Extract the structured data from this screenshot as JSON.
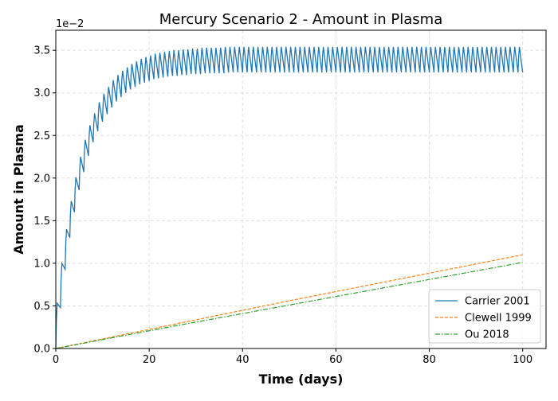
{
  "chart_data": {
    "type": "line",
    "title": "Mercury Scenario 2 - Amount in Plasma",
    "xlabel": "Time (days)",
    "ylabel": "Amount in Plasma",
    "y_offset_label": "1e−2",
    "xlim": [
      0,
      105
    ],
    "ylim": [
      0,
      3.735
    ],
    "xticks": [
      "0",
      "20",
      "40",
      "60",
      "80",
      "100"
    ],
    "yticks": [
      "0.0",
      "0.5",
      "1.0",
      "1.5",
      "2.0",
      "2.5",
      "3.0",
      "3.5"
    ],
    "grid": true,
    "legend_position": "lower-right",
    "series": [
      {
        "name": "Carrier 2001",
        "color": "#1f77b4",
        "style": "solid",
        "pattern": "daily dose oscillation",
        "daily_peaks": [
          0.53,
          1.0,
          1.4,
          1.73,
          2.01,
          2.25,
          2.45,
          2.62,
          2.76,
          2.89,
          2.99,
          3.07,
          3.15,
          3.21,
          3.26,
          3.3,
          3.34,
          3.37,
          3.4,
          3.42,
          3.44,
          3.46,
          3.47,
          3.48,
          3.49,
          3.5,
          3.5,
          3.51,
          3.51,
          3.52,
          3.52,
          3.53,
          3.53,
          3.53,
          3.53,
          3.53,
          3.54,
          3.54,
          3.54,
          3.54,
          3.54,
          3.54,
          3.54,
          3.54,
          3.54,
          3.54,
          3.54,
          3.54,
          3.54,
          3.54,
          3.54,
          3.54,
          3.54,
          3.54,
          3.54,
          3.54,
          3.54,
          3.54,
          3.54,
          3.54,
          3.54,
          3.54,
          3.54,
          3.54,
          3.54,
          3.54,
          3.54,
          3.54,
          3.54,
          3.54,
          3.54,
          3.54,
          3.54,
          3.54,
          3.54,
          3.54,
          3.54,
          3.54,
          3.54,
          3.54,
          3.54,
          3.54,
          3.54,
          3.54,
          3.54,
          3.54,
          3.54,
          3.54,
          3.54,
          3.54,
          3.54,
          3.54,
          3.54,
          3.54,
          3.54,
          3.54,
          3.54,
          3.54,
          3.54,
          3.54
        ],
        "daily_troughs": [
          0.48,
          0.93,
          1.3,
          1.6,
          1.86,
          2.07,
          2.26,
          2.42,
          2.55,
          2.66,
          2.75,
          2.83,
          2.9,
          2.95,
          3.0,
          3.04,
          3.07,
          3.1,
          3.12,
          3.14,
          3.16,
          3.17,
          3.18,
          3.19,
          3.2,
          3.2,
          3.21,
          3.21,
          3.22,
          3.22,
          3.22,
          3.23,
          3.23,
          3.23,
          3.23,
          3.23,
          3.24,
          3.24,
          3.24,
          3.24,
          3.24,
          3.24,
          3.24,
          3.24,
          3.24,
          3.24,
          3.24,
          3.24,
          3.24,
          3.24,
          3.24,
          3.24,
          3.24,
          3.24,
          3.24,
          3.24,
          3.24,
          3.24,
          3.24,
          3.24,
          3.24,
          3.24,
          3.24,
          3.24,
          3.24,
          3.24,
          3.24,
          3.24,
          3.24,
          3.24,
          3.24,
          3.24,
          3.24,
          3.24,
          3.24,
          3.24,
          3.24,
          3.24,
          3.24,
          3.24,
          3.24,
          3.24,
          3.24,
          3.24,
          3.24,
          3.24,
          3.24,
          3.24,
          3.24,
          3.24,
          3.24,
          3.24,
          3.24,
          3.24,
          3.24,
          3.24,
          3.24,
          3.24,
          3.24,
          3.24
        ]
      },
      {
        "name": "Clewell 1999",
        "color": "#ff7f0e",
        "style": "dashed",
        "x": [
          0,
          25,
          50,
          75,
          100
        ],
        "y": [
          0,
          0.28,
          0.56,
          0.83,
          1.1
        ]
      },
      {
        "name": "Ou 2018",
        "color": "#2ca02c",
        "style": "dashdot",
        "x": [
          0,
          25,
          50,
          75,
          100
        ],
        "y": [
          0,
          0.26,
          0.51,
          0.76,
          1.01
        ]
      }
    ]
  }
}
